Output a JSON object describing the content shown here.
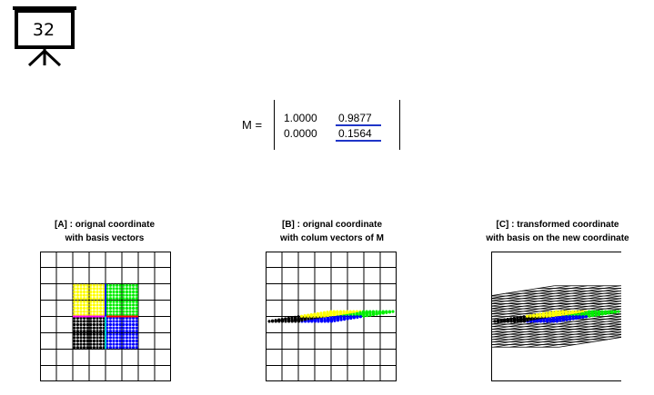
{
  "slide": {
    "number": "32"
  },
  "matrix": {
    "label": "M =",
    "rows": [
      [
        "1.0000",
        "0.9877"
      ],
      [
        "0.0000",
        "0.1564"
      ]
    ]
  },
  "panels": [
    {
      "title_line1": "[A] : orignal coordinate",
      "title_line2": "with basis vectors"
    },
    {
      "title_line1": "[B] : orignal coordinate",
      "title_line2": "with colum vectors of M"
    },
    {
      "title_line1": "[C] : transformed coordinate",
      "title_line2": "with basis on the new coordinate"
    }
  ],
  "colors": {
    "yellow": "#ffff00",
    "green": "#00ee00",
    "black": "#000000",
    "blue": "#0000ff",
    "magenta": "#ff00ff",
    "red": "#ff0000",
    "cyan": "#00cccc",
    "accent_underline": "#1f35c8"
  }
}
